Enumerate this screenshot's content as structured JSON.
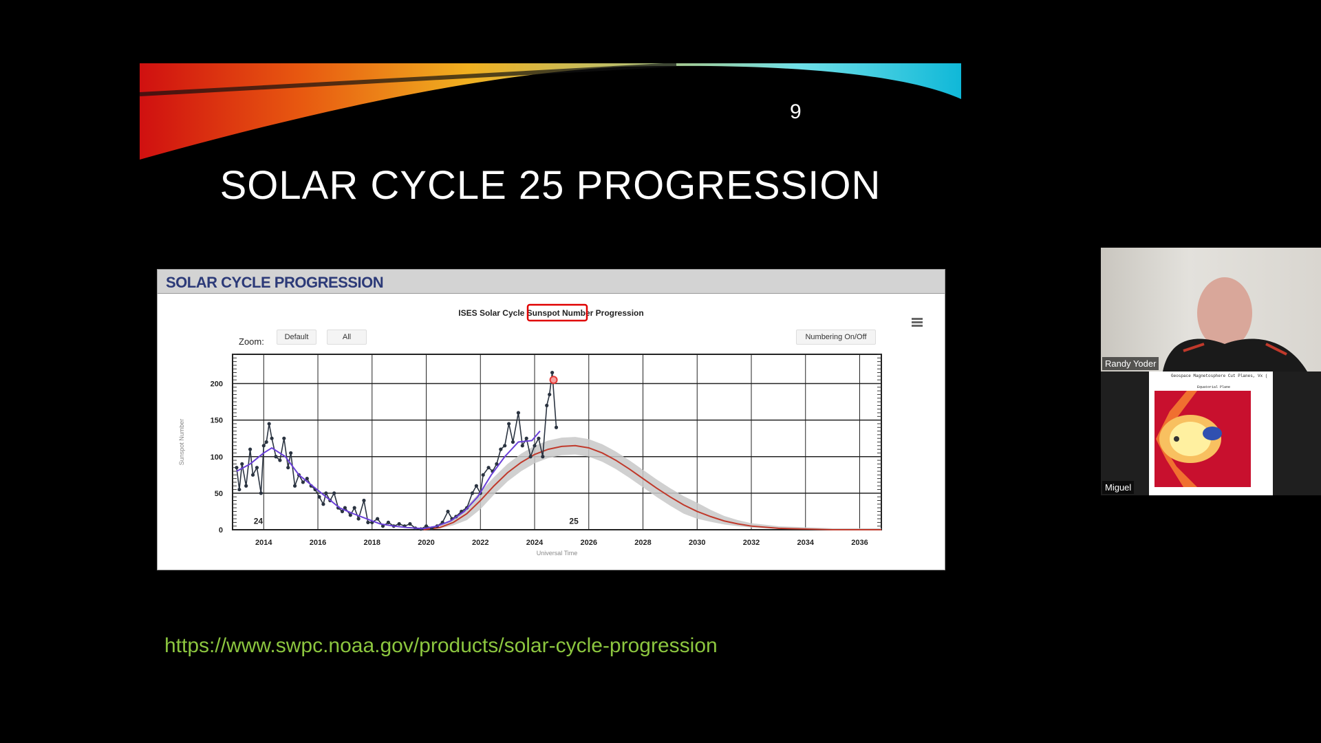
{
  "slide": {
    "number": "9",
    "title": "SOLAR CYCLE 25 PROGRESSION",
    "url": "https://www.swpc.noaa.gov/products/solar-cycle-progression"
  },
  "panel": {
    "header": "SOLAR CYCLE PROGRESSION",
    "zoom_label": "Zoom:",
    "zoom_default": "Default",
    "zoom_all": "All",
    "numbering_button": "Numbering On/Off",
    "menu_icon": "hamburger-menu-icon"
  },
  "chart_data": {
    "type": "line",
    "title_parts": [
      "ISES Solar Cycle ",
      "Sunspot Number",
      " Progression"
    ],
    "highlight_color": "#e00000",
    "xlabel": "Universal Time",
    "ylabel": "Sunspot Number",
    "xlim": [
      2012.85,
      2036.8
    ],
    "ylim": [
      0,
      240
    ],
    "xticks": [
      "2014",
      "2016",
      "2018",
      "2020",
      "2022",
      "2024",
      "2026",
      "2028",
      "2030",
      "2032",
      "2034",
      "2036"
    ],
    "yticks": [
      "0",
      "50",
      "100",
      "150",
      "200"
    ],
    "grid": true,
    "cycle_labels": [
      {
        "text": "24",
        "x": 2013.8,
        "y": 8
      },
      {
        "text": "25",
        "x": 2025.45,
        "y": 8
      }
    ],
    "colors": {
      "observed": "#2a3340",
      "smoothed": "#6a3fd8",
      "predicted": "#c0392b",
      "band": "#c8c8c8",
      "latest": "#e53935"
    },
    "observed": [
      [
        2013.0,
        85
      ],
      [
        2013.1,
        55
      ],
      [
        2013.2,
        90
      ],
      [
        2013.35,
        60
      ],
      [
        2013.5,
        110
      ],
      [
        2013.6,
        75
      ],
      [
        2013.75,
        85
      ],
      [
        2013.9,
        50
      ],
      [
        2014.0,
        115
      ],
      [
        2014.1,
        120
      ],
      [
        2014.2,
        145
      ],
      [
        2014.3,
        125
      ],
      [
        2014.45,
        100
      ],
      [
        2014.6,
        95
      ],
      [
        2014.75,
        125
      ],
      [
        2014.9,
        85
      ],
      [
        2015.0,
        105
      ],
      [
        2015.15,
        60
      ],
      [
        2015.3,
        75
      ],
      [
        2015.45,
        65
      ],
      [
        2015.6,
        70
      ],
      [
        2015.75,
        60
      ],
      [
        2015.9,
        55
      ],
      [
        2016.05,
        45
      ],
      [
        2016.2,
        35
      ],
      [
        2016.3,
        50
      ],
      [
        2016.45,
        40
      ],
      [
        2016.6,
        50
      ],
      [
        2016.75,
        30
      ],
      [
        2016.9,
        25
      ],
      [
        2017.0,
        30
      ],
      [
        2017.2,
        20
      ],
      [
        2017.35,
        30
      ],
      [
        2017.5,
        15
      ],
      [
        2017.7,
        40
      ],
      [
        2017.85,
        10
      ],
      [
        2018.0,
        10
      ],
      [
        2018.2,
        15
      ],
      [
        2018.4,
        5
      ],
      [
        2018.6,
        10
      ],
      [
        2018.8,
        5
      ],
      [
        2019.0,
        8
      ],
      [
        2019.2,
        5
      ],
      [
        2019.4,
        8
      ],
      [
        2019.6,
        2
      ],
      [
        2019.8,
        1
      ],
      [
        2020.0,
        5
      ],
      [
        2020.2,
        2
      ],
      [
        2020.4,
        5
      ],
      [
        2020.6,
        10
      ],
      [
        2020.8,
        25
      ],
      [
        2020.95,
        15
      ],
      [
        2021.1,
        18
      ],
      [
        2021.3,
        25
      ],
      [
        2021.5,
        30
      ],
      [
        2021.7,
        50
      ],
      [
        2021.85,
        60
      ],
      [
        2022.0,
        50
      ],
      [
        2022.1,
        75
      ],
      [
        2022.3,
        85
      ],
      [
        2022.45,
        80
      ],
      [
        2022.6,
        90
      ],
      [
        2022.75,
        110
      ],
      [
        2022.9,
        115
      ],
      [
        2023.05,
        145
      ],
      [
        2023.2,
        120
      ],
      [
        2023.4,
        160
      ],
      [
        2023.55,
        115
      ],
      [
        2023.7,
        125
      ],
      [
        2023.85,
        100
      ],
      [
        2024.0,
        115
      ],
      [
        2024.15,
        125
      ],
      [
        2024.3,
        100
      ],
      [
        2024.45,
        170
      ],
      [
        2024.55,
        185
      ],
      [
        2024.65,
        215
      ],
      [
        2024.8,
        140
      ]
    ],
    "smoothed": [
      [
        2013.0,
        80
      ],
      [
        2013.5,
        90
      ],
      [
        2014.0,
        105
      ],
      [
        2014.3,
        112
      ],
      [
        2014.8,
        100
      ],
      [
        2015.3,
        75
      ],
      [
        2015.8,
        60
      ],
      [
        2016.3,
        45
      ],
      [
        2016.8,
        30
      ],
      [
        2017.3,
        22
      ],
      [
        2017.8,
        15
      ],
      [
        2018.3,
        8
      ],
      [
        2018.8,
        5
      ],
      [
        2019.3,
        3
      ],
      [
        2019.9,
        1.5
      ],
      [
        2020.4,
        5
      ],
      [
        2020.9,
        12
      ],
      [
        2021.4,
        25
      ],
      [
        2021.9,
        45
      ],
      [
        2022.4,
        75
      ],
      [
        2022.9,
        100
      ],
      [
        2023.4,
        120
      ],
      [
        2023.9,
        122
      ],
      [
        2024.2,
        135
      ]
    ],
    "predicted": [
      [
        2019.9,
        0
      ],
      [
        2020.5,
        3
      ],
      [
        2021,
        10
      ],
      [
        2021.5,
        22
      ],
      [
        2022,
        40
      ],
      [
        2022.5,
        60
      ],
      [
        2023,
        78
      ],
      [
        2023.5,
        92
      ],
      [
        2024,
        103
      ],
      [
        2024.5,
        110
      ],
      [
        2025,
        114
      ],
      [
        2025.5,
        115
      ],
      [
        2026,
        112
      ],
      [
        2026.5,
        105
      ],
      [
        2027,
        95
      ],
      [
        2027.5,
        83
      ],
      [
        2028,
        70
      ],
      [
        2028.5,
        57
      ],
      [
        2029,
        45
      ],
      [
        2029.5,
        34
      ],
      [
        2030,
        25
      ],
      [
        2030.5,
        18
      ],
      [
        2031,
        12
      ],
      [
        2031.5,
        8
      ],
      [
        2032,
        5
      ],
      [
        2033,
        2
      ],
      [
        2034,
        1
      ],
      [
        2035,
        0
      ],
      [
        2036.8,
        0
      ]
    ],
    "latest_predicted_point": [
      2024.7,
      205
    ]
  },
  "participants": [
    {
      "name": "Randy Yoder"
    },
    {
      "name": "Miguel",
      "shared_title": "Geospace Magnetosphere Cut Planes, Vx (",
      "shared_subtitle": "Equatorial Plane"
    }
  ]
}
